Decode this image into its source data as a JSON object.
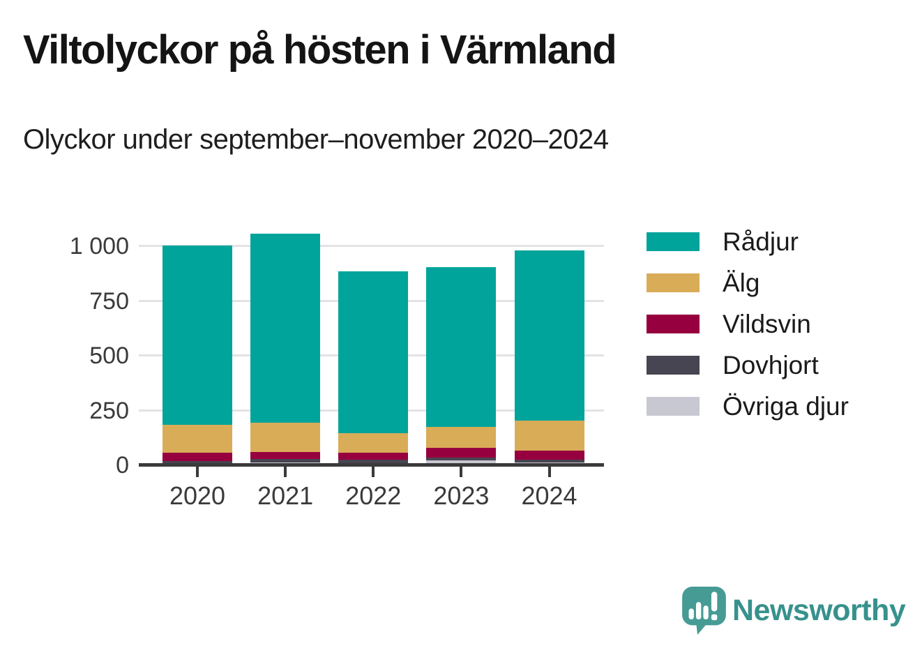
{
  "title": "Viltolyckor på hösten i Värmland",
  "subtitle": "Olyckor under september–november 2020–2024",
  "branding": {
    "wordmark": "Newsworthy",
    "logo_icon": "speech-bubble-bar-chart-icon",
    "brand_color": "#37918c",
    "icon_fill": "#479b95"
  },
  "colors": {
    "background": "#ffffff",
    "axis": "#3a3a3a",
    "gridline": "#e3e3e5",
    "title_text": "#141414",
    "subtitle_text": "#1e1e1e"
  },
  "chart_data": {
    "type": "bar",
    "stacked": true,
    "title": "Viltolyckor på hösten i Värmland",
    "subtitle": "Olyckor under september–november 2020–2024",
    "categories": [
      "2020",
      "2021",
      "2022",
      "2023",
      "2024"
    ],
    "series": [
      {
        "name": "Rådjur",
        "color": "#00a49b",
        "values": [
          819,
          864,
          739,
          730,
          778
        ]
      },
      {
        "name": "Älg",
        "color": "#d9ac58",
        "values": [
          129,
          133,
          90,
          95,
          137
        ]
      },
      {
        "name": "Vildsvin",
        "color": "#97003f",
        "values": [
          37,
          31,
          32,
          46,
          40
        ]
      },
      {
        "name": "Dovhjort",
        "color": "#474551",
        "values": [
          11,
          16,
          15,
          13,
          13
        ]
      },
      {
        "name": "Övriga djur",
        "color": "#c8c8d2",
        "values": [
          9,
          14,
          9,
          21,
          14
        ]
      }
    ],
    "totals": [
      1005,
      1058,
      885,
      905,
      982
    ],
    "stack_order_bottom_to_top": [
      "Övriga djur",
      "Dovhjort",
      "Vildsvin",
      "Älg",
      "Rådjur"
    ],
    "xlabel": "",
    "ylabel": "",
    "yticks": [
      "0",
      "250",
      "500",
      "750",
      "1 000"
    ],
    "ytick_values": [
      0,
      250,
      500,
      750,
      1000
    ],
    "ylim": [
      0,
      1075
    ],
    "grid": true,
    "legend_position": "right"
  }
}
